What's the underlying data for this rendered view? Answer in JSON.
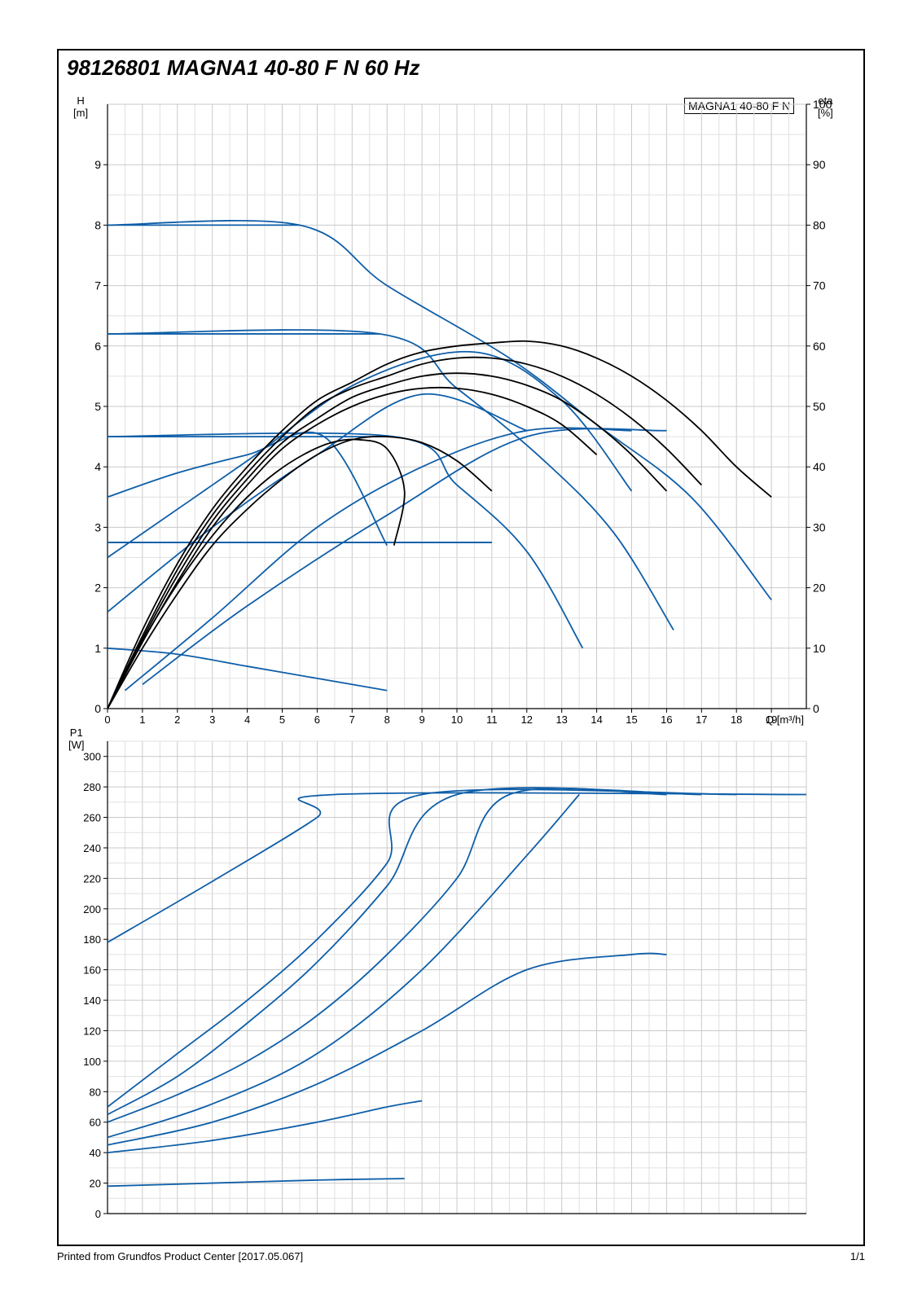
{
  "title": "98126801 MAGNA1 40-80 F N 60 Hz",
  "legend": "MAGNA1 40-80 F N",
  "footer_left": "Printed from Grundfos Product Center [2017.05.067]",
  "footer_right": "1/1",
  "colors": {
    "blue": "#0e5ea8",
    "blue2": "#1a6fb3",
    "black": "#000000",
    "grid": "#c9c9c9",
    "grid_minor": "#e0e0e0",
    "border": "#000000",
    "text": "#000000"
  },
  "top_chart": {
    "type": "pump-curve",
    "x": {
      "label": "Q [m³/h]",
      "min": 0,
      "max": 20,
      "ticks": [
        0,
        1,
        2,
        3,
        4,
        5,
        6,
        7,
        8,
        9,
        10,
        11,
        12,
        13,
        14,
        15,
        16,
        17,
        18,
        19
      ]
    },
    "y_left": {
      "label": "H\n[m]",
      "min": 0,
      "max": 10,
      "ticks": [
        0,
        1,
        2,
        3,
        4,
        5,
        6,
        7,
        8,
        9
      ]
    },
    "y_right": {
      "label": "eta\n[%]",
      "min": 0,
      "max": 100,
      "ticks": [
        0,
        10,
        20,
        30,
        40,
        50,
        60,
        70,
        80,
        90,
        100
      ]
    },
    "blue_curves": [
      [
        [
          0,
          8.0
        ],
        [
          5.5,
          8.0
        ],
        [
          8,
          7.0
        ],
        [
          11.5,
          5.8
        ],
        [
          14,
          4.7
        ],
        [
          16.7,
          3.5
        ],
        [
          19.0,
          1.8
        ]
      ],
      [
        [
          0,
          6.2
        ],
        [
          7.8,
          6.2
        ],
        [
          10,
          5.3
        ],
        [
          12.5,
          4.1
        ],
        [
          14.5,
          2.9
        ],
        [
          16.2,
          1.3
        ]
      ],
      [
        [
          0,
          4.5
        ],
        [
          8.2,
          4.5
        ],
        [
          10,
          3.7
        ],
        [
          12,
          2.6
        ],
        [
          13.6,
          1.0
        ]
      ],
      [
        [
          0,
          2.75
        ],
        [
          11.0,
          2.75
        ]
      ],
      [
        [
          0,
          2.5
        ],
        [
          4,
          4.1
        ],
        [
          7.2,
          5.4
        ],
        [
          10.5,
          5.9
        ],
        [
          13,
          5.1
        ],
        [
          15,
          3.6
        ]
      ],
      [
        [
          0,
          1.6
        ],
        [
          3,
          3.0
        ],
        [
          6,
          4.2
        ],
        [
          9,
          5.2
        ],
        [
          12,
          4.6
        ]
      ],
      [
        [
          0,
          3.5
        ],
        [
          2,
          3.9
        ],
        [
          4,
          4.2
        ],
        [
          6.2,
          4.5
        ],
        [
          8,
          2.7
        ]
      ],
      [
        [
          0,
          1.0
        ],
        [
          2,
          0.9
        ],
        [
          4,
          0.7
        ],
        [
          6,
          0.5
        ],
        [
          8,
          0.3
        ]
      ],
      [
        [
          0.5,
          0.3
        ],
        [
          3,
          1.5
        ],
        [
          6,
          3.0
        ],
        [
          9,
          4.0
        ],
        [
          12,
          4.6
        ],
        [
          15,
          4.6
        ]
      ],
      [
        [
          1,
          0.4
        ],
        [
          4,
          1.7
        ],
        [
          8,
          3.2
        ],
        [
          12,
          4.5
        ],
        [
          16,
          4.6
        ]
      ]
    ],
    "black_curves": [
      [
        [
          0,
          0
        ],
        [
          1,
          1.3
        ],
        [
          2,
          2.4
        ],
        [
          3,
          3.3
        ],
        [
          4,
          4.0
        ],
        [
          5,
          4.6
        ],
        [
          6,
          5.1
        ],
        [
          7,
          5.4
        ],
        [
          8,
          5.7
        ],
        [
          9,
          5.9
        ],
        [
          10,
          6.0
        ],
        [
          11,
          6.05
        ],
        [
          12,
          6.08
        ],
        [
          13,
          6.0
        ],
        [
          14,
          5.8
        ],
        [
          15,
          5.5
        ],
        [
          16,
          5.1
        ],
        [
          17,
          4.6
        ],
        [
          18,
          4.0
        ],
        [
          19,
          3.5
        ]
      ],
      [
        [
          0,
          0
        ],
        [
          1,
          1.2
        ],
        [
          2,
          2.3
        ],
        [
          3,
          3.2
        ],
        [
          4,
          3.9
        ],
        [
          5,
          4.5
        ],
        [
          6,
          5.0
        ],
        [
          7,
          5.3
        ],
        [
          8,
          5.5
        ],
        [
          9,
          5.7
        ],
        [
          10,
          5.8
        ],
        [
          11,
          5.8
        ],
        [
          12,
          5.7
        ],
        [
          13,
          5.5
        ],
        [
          14,
          5.2
        ],
        [
          15,
          4.8
        ],
        [
          16,
          4.3
        ],
        [
          17,
          3.7
        ]
      ],
      [
        [
          0,
          0
        ],
        [
          1,
          1.15
        ],
        [
          2,
          2.2
        ],
        [
          3,
          3.1
        ],
        [
          4,
          3.8
        ],
        [
          5,
          4.4
        ],
        [
          6,
          4.8
        ],
        [
          7,
          5.15
        ],
        [
          8,
          5.35
        ],
        [
          9,
          5.5
        ],
        [
          10,
          5.55
        ],
        [
          11,
          5.5
        ],
        [
          12,
          5.35
        ],
        [
          13,
          5.1
        ],
        [
          14,
          4.7
        ],
        [
          15,
          4.2
        ],
        [
          16,
          3.6
        ]
      ],
      [
        [
          0,
          0
        ],
        [
          1,
          1.1
        ],
        [
          2,
          2.1
        ],
        [
          3,
          3.0
        ],
        [
          4,
          3.7
        ],
        [
          5,
          4.3
        ],
        [
          6,
          4.7
        ],
        [
          7,
          5.0
        ],
        [
          8,
          5.2
        ],
        [
          9,
          5.3
        ],
        [
          10,
          5.3
        ],
        [
          11,
          5.2
        ],
        [
          12,
          5.0
        ],
        [
          13,
          4.7
        ],
        [
          14,
          4.2
        ]
      ],
      [
        [
          0,
          0
        ],
        [
          1,
          1.0
        ],
        [
          2,
          1.9
        ],
        [
          3,
          2.7
        ],
        [
          4,
          3.3
        ],
        [
          5,
          3.8
        ],
        [
          6,
          4.2
        ],
        [
          7,
          4.45
        ],
        [
          8,
          4.5
        ],
        [
          9,
          4.4
        ],
        [
          10,
          4.1
        ],
        [
          11,
          3.6
        ]
      ],
      [
        [
          0,
          0
        ],
        [
          0.8,
          0.9
        ],
        [
          1.6,
          1.7
        ],
        [
          2.4,
          2.4
        ],
        [
          3.2,
          3.0
        ],
        [
          4,
          3.5
        ],
        [
          4.8,
          3.9
        ],
        [
          5.6,
          4.2
        ],
        [
          6.4,
          4.4
        ],
        [
          7.2,
          4.45
        ],
        [
          8,
          4.3
        ],
        [
          8.5,
          3.6
        ],
        [
          8.2,
          2.7
        ]
      ]
    ]
  },
  "bottom_chart": {
    "type": "power-curve",
    "x": {
      "min": 0,
      "max": 20
    },
    "y_left": {
      "label": "P1\n[W]",
      "min": 0,
      "max": 310,
      "ticks": [
        0,
        20,
        40,
        60,
        80,
        100,
        120,
        140,
        160,
        180,
        200,
        220,
        240,
        260,
        280,
        300
      ]
    },
    "blue_curves": [
      [
        [
          0,
          178
        ],
        [
          3,
          218
        ],
        [
          6,
          260
        ],
        [
          6.5,
          275
        ],
        [
          20,
          275
        ]
      ],
      [
        [
          0,
          70
        ],
        [
          2,
          105
        ],
        [
          4,
          140
        ],
        [
          6,
          180
        ],
        [
          8,
          230
        ],
        [
          9,
          275
        ],
        [
          18,
          275
        ]
      ],
      [
        [
          0,
          65
        ],
        [
          2,
          90
        ],
        [
          4,
          125
        ],
        [
          6,
          165
        ],
        [
          8,
          215
        ],
        [
          10,
          275
        ],
        [
          17,
          275
        ]
      ],
      [
        [
          0,
          60
        ],
        [
          2,
          78
        ],
        [
          4,
          100
        ],
        [
          6,
          130
        ],
        [
          8,
          170
        ],
        [
          10,
          220
        ],
        [
          11.5,
          275
        ],
        [
          16,
          275
        ]
      ],
      [
        [
          0,
          50
        ],
        [
          3,
          72
        ],
        [
          6,
          105
        ],
        [
          9,
          160
        ],
        [
          12,
          235
        ],
        [
          13.5,
          275
        ]
      ],
      [
        [
          0,
          45
        ],
        [
          3,
          60
        ],
        [
          6,
          85
        ],
        [
          9,
          120
        ],
        [
          12,
          160
        ],
        [
          15,
          170
        ],
        [
          16,
          170
        ]
      ],
      [
        [
          0,
          40
        ],
        [
          3,
          48
        ],
        [
          6,
          60
        ],
        [
          8,
          70
        ],
        [
          9,
          74
        ]
      ],
      [
        [
          0,
          18
        ],
        [
          3,
          20
        ],
        [
          6,
          22
        ],
        [
          8.5,
          23
        ]
      ]
    ]
  }
}
